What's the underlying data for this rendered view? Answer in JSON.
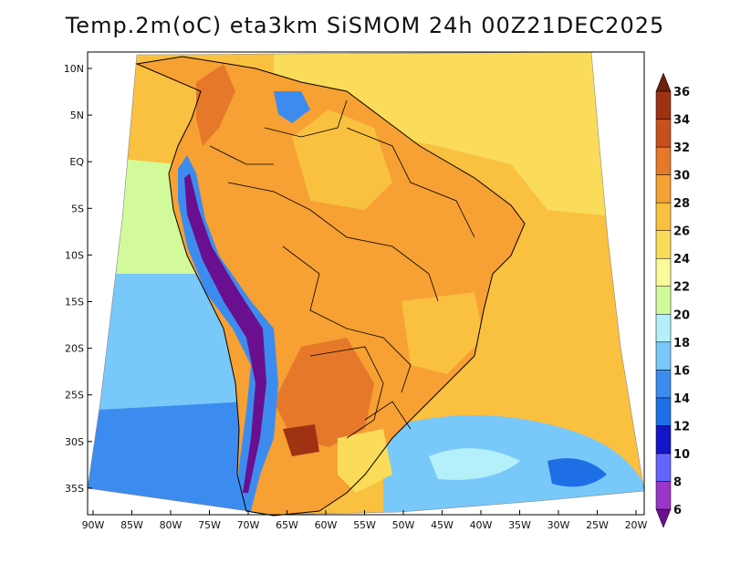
{
  "title": "Temp.2m(oC) eta3km SiSMOM 24h 00Z21DEC2025",
  "lat_ticks": [
    "10N",
    "5N",
    "EQ",
    "5S",
    "10S",
    "15S",
    "20S",
    "25S",
    "30S",
    "35S"
  ],
  "lon_ticks": [
    "90W",
    "85W",
    "80W",
    "75W",
    "70W",
    "65W",
    "60W",
    "55W",
    "50W",
    "45W",
    "40W",
    "35W",
    "30W",
    "25W",
    "20W"
  ],
  "colorbar": {
    "labels": [
      "6",
      "8",
      "10",
      "12",
      "14",
      "16",
      "18",
      "20",
      "22",
      "24",
      "26",
      "28",
      "30",
      "32",
      "34",
      "36"
    ],
    "colors": [
      "#6a0f8f",
      "#9a35c8",
      "#6464ff",
      "#1414c8",
      "#1e6ee6",
      "#3c8cf0",
      "#78c8fa",
      "#b4f0fa",
      "#d2fa9a",
      "#fafa9a",
      "#fadc5a",
      "#fac040",
      "#f7a033",
      "#e6782a",
      "#c8501e",
      "#a03214",
      "#6e1e0a"
    ]
  },
  "layers": {
    "ocean": "#fac040",
    "north_ocean": "#fadc5a",
    "land": "#f7a033",
    "pacific_cool": "#78c8fa",
    "pacific_mid": "#d2fa9a",
    "south_cold": "#3c8cf0",
    "andes": "#6a0f8f"
  }
}
